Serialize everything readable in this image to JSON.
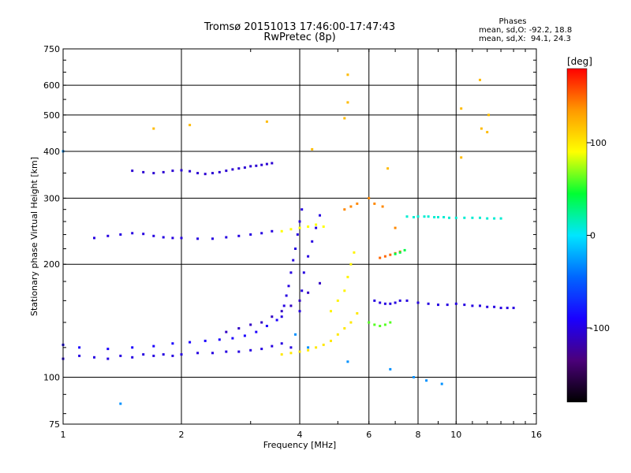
{
  "header": {
    "title_line1": "Tromsø 20151013 17:46:00-17:47:43",
    "title_line2": "RwPretec (8p)",
    "phases_title": "Phases",
    "phases_o": "mean, sd,O: -92.2, 18.8",
    "phases_x": "mean, sd,X:  94.1, 24.3"
  },
  "chart_data": {
    "type": "scatter",
    "xlabel": "Frequency [MHz]",
    "ylabel": "Stationary phase Virtual Height [km]",
    "xscale": "log",
    "yscale": "log",
    "xlim": [
      1,
      16
    ],
    "ylim": [
      75,
      750
    ],
    "xticks": [
      1,
      2,
      4,
      6,
      8,
      10,
      16
    ],
    "yticks": [
      75,
      100,
      200,
      300,
      400,
      500,
      600,
      750
    ],
    "grid": true,
    "colorbar": {
      "label": "[deg]",
      "ticks": [
        100,
        0,
        -100
      ],
      "range": [
        -180,
        180
      ],
      "colors": [
        "#000000",
        "#4b007a",
        "#1a00ff",
        "#0066ff",
        "#00e6ff",
        "#00ff33",
        "#ffff00",
        "#ff9900",
        "#ff0000"
      ]
    },
    "series": [
      {
        "x": [
          1.0,
          1.1,
          1.2,
          1.3,
          1.4,
          1.5,
          1.6,
          1.7,
          1.8,
          1.9,
          2.0,
          2.2,
          2.4,
          2.6,
          2.8,
          3.0,
          3.2,
          3.4,
          3.6,
          3.8
        ],
        "y": [
          112,
          114,
          113,
          112,
          114,
          113,
          115,
          114,
          115,
          114,
          115,
          116,
          116,
          117,
          117,
          118,
          119,
          121,
          123,
          120
        ],
        "phase": -100
      },
      {
        "x": [
          1.0,
          1.1,
          1.3,
          1.5,
          1.7,
          1.9,
          2.1,
          2.3,
          2.5,
          2.7,
          2.9,
          3.1,
          3.3,
          3.5
        ],
        "y": [
          122,
          120,
          119,
          120,
          121,
          123,
          124,
          125,
          126,
          127,
          129,
          132,
          137,
          142
        ],
        "phase": -90
      },
      {
        "x": [
          2.6,
          2.8,
          3.0,
          3.2,
          3.4,
          3.6,
          3.8,
          4.0,
          4.2,
          4.5
        ],
        "y": [
          132,
          135,
          138,
          140,
          145,
          150,
          155,
          160,
          168,
          178
        ],
        "phase": -110
      },
      {
        "x": [
          3.6,
          3.65,
          3.7,
          3.75,
          3.8,
          3.85,
          3.9,
          3.95,
          4.0,
          4.05
        ],
        "y": [
          145,
          155,
          165,
          175,
          190,
          205,
          220,
          240,
          260,
          280
        ],
        "phase": -100
      },
      {
        "x": [
          4.0,
          4.05,
          4.1,
          4.2,
          4.3,
          4.4,
          4.5
        ],
        "y": [
          150,
          170,
          190,
          210,
          230,
          250,
          270
        ],
        "phase": -100
      },
      {
        "x": [
          3.6,
          3.8,
          4.0,
          4.2,
          4.4,
          4.6,
          4.8,
          5.0,
          5.2,
          5.4,
          5.6
        ],
        "y": [
          115,
          116,
          117,
          118,
          120,
          122,
          125,
          130,
          135,
          140,
          148
        ],
        "phase": 100
      },
      {
        "x": [
          4.8,
          5.0,
          5.2,
          5.3,
          5.4,
          5.5
        ],
        "y": [
          150,
          160,
          170,
          185,
          200,
          215
        ],
        "phase": 95
      },
      {
        "x": [
          1.2,
          1.3,
          1.4,
          1.5,
          1.6,
          1.7,
          1.8,
          1.9,
          2.0,
          2.2,
          2.4,
          2.6,
          2.8,
          3.0,
          3.2,
          3.4
        ],
        "y": [
          235,
          238,
          240,
          242,
          241,
          238,
          236,
          235,
          235,
          234,
          234,
          236,
          238,
          240,
          242,
          245
        ],
        "phase": -100
      },
      {
        "x": [
          3.6,
          3.8,
          4.0,
          4.2,
          4.4,
          4.6
        ],
        "y": [
          245,
          248,
          250,
          252,
          255,
          252
        ],
        "phase": 90
      },
      {
        "x": [
          1.5,
          1.6,
          1.7,
          1.8,
          1.9,
          2.0,
          2.1,
          2.2,
          2.3,
          2.4,
          2.5,
          2.6,
          2.7,
          2.8,
          2.9,
          3.0,
          3.1,
          3.2,
          3.3,
          3.4
        ],
        "y": [
          355,
          352,
          350,
          352,
          355,
          356,
          354,
          350,
          348,
          350,
          352,
          355,
          358,
          360,
          362,
          365,
          366,
          368,
          370,
          372
        ],
        "phase": -105
      },
      {
        "x": [
          6.2,
          6.4,
          6.6,
          6.8,
          7.0,
          7.2,
          7.5,
          8.0,
          8.5,
          9.0,
          9.5,
          10.0,
          10.5,
          11.0,
          11.5,
          12.0,
          12.5,
          13.0,
          13.5,
          14.0
        ],
        "y": [
          160,
          158,
          157,
          157,
          158,
          160,
          160,
          158,
          157,
          156,
          156,
          157,
          156,
          155,
          155,
          154,
          154,
          153,
          153,
          153
        ],
        "phase": -100
      },
      {
        "x": [
          6.4,
          6.6,
          6.8,
          7.0,
          7.2
        ],
        "y": [
          208,
          210,
          212,
          214,
          216
        ],
        "phase": 150
      },
      {
        "x": [
          6.0,
          6.2,
          6.4,
          6.6,
          6.8
        ],
        "y": [
          140,
          138,
          137,
          138,
          140
        ],
        "phase": 60
      },
      {
        "x": [
          7.5,
          7.8,
          8.0,
          8.3,
          8.5,
          8.8,
          9.0,
          9.3,
          9.6,
          10.0,
          10.5,
          11.0,
          11.5,
          12.0,
          12.5,
          13.0
        ],
        "y": [
          268,
          267,
          268,
          268,
          268,
          267,
          267,
          267,
          266,
          266,
          266,
          266,
          266,
          265,
          265,
          265
        ],
        "phase": 10
      },
      {
        "x": [
          5.2,
          5.4,
          5.6,
          6.0,
          6.2,
          6.5,
          7.0
        ],
        "y": [
          280,
          285,
          290,
          300,
          290,
          285,
          250
        ],
        "phase": 140
      },
      {
        "x": [
          7.0,
          7.2,
          7.4
        ],
        "y": [
          213,
          215,
          218
        ],
        "phase": 40
      },
      {
        "x": [
          1.7,
          2.1,
          3.3,
          4.3,
          5.3,
          5.3,
          5.2,
          6.7,
          10.3,
          10.3,
          11.5,
          11.6,
          12.0,
          12.1
        ],
        "y": [
          460,
          470,
          480,
          405,
          640,
          540,
          490,
          360,
          520,
          385,
          620,
          460,
          450,
          500
        ],
        "phase": 120
      },
      {
        "x": [
          1.0,
          1.4,
          3.9,
          4.2,
          5.3,
          6.8,
          7.8,
          8.4,
          9.2
        ],
        "y": [
          400,
          85,
          130,
          120,
          110,
          105,
          100,
          98,
          96
        ],
        "phase": -30
      }
    ]
  }
}
